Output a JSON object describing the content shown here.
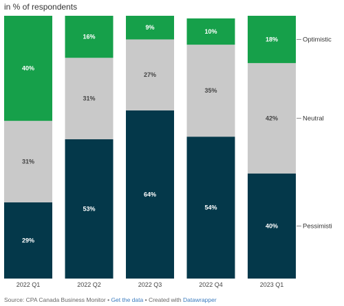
{
  "chart_data": {
    "type": "bar",
    "stacked": true,
    "orientation": "vertical",
    "subtitle": "in % of respondents",
    "categories": [
      "2022 Q1",
      "2022 Q2",
      "2022 Q3",
      "2022 Q4",
      "2023 Q1"
    ],
    "series": [
      {
        "name": "Pessimisti",
        "color": "#04384a",
        "label_color": "#ffffff",
        "label_bold": true,
        "values": [
          29,
          53,
          64,
          54,
          40
        ]
      },
      {
        "name": "Neutral",
        "color": "#c9c9c9",
        "label_color": "#444444",
        "label_bold": false,
        "values": [
          31,
          31,
          27,
          35,
          42
        ]
      },
      {
        "name": "Optimistic",
        "color": "#16a04a",
        "label_color": "#ffffff",
        "label_bold": true,
        "values": [
          40,
          16,
          9,
          10,
          18
        ]
      }
    ],
    "value_suffix": "%",
    "ylim": [
      0,
      100
    ],
    "grid": false,
    "legend_position": "right, aligned to last bar"
  },
  "footer": {
    "source_text": "Source: CPA Canada Business Monitor",
    "separator": " • ",
    "get_data_link": "Get the data",
    "created_with_text": "Created with ",
    "tool_link": "Datawrapper"
  }
}
